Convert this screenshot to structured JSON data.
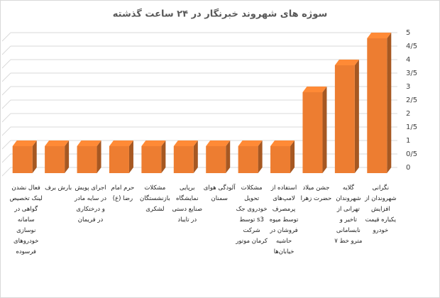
{
  "chart_data": {
    "type": "bar",
    "title": "سوژه های شهروند خبرنگار در ۲۴ ساعت گذشته",
    "categories": [
      "نگرانی شهروندان از افزایش یکباره قیمت خودرو",
      "گلایه شهروندان تهرانی از تاخیر و نابسامانی مترو خط ۷",
      "جشن میلاد حضرت زهرا",
      "استفاده از لامپ‌های پرمصرف توسط میوه فروشان در حاشیه خیابان‌ها",
      "مشکلات تحویل خودروی جک s3 توسط شرکت کرمان موتور",
      "آلودگی هوای سمنان",
      "برپایی نمایشگاه صنایع دستی در تایباد",
      "مشکلات بازنشستگان لشکری",
      "حرم امام رضا (ع)",
      "اجرای پویش در سایه مادر و درختکاری در فریمان",
      "بارش برف",
      "فعال نشدن لینک تخصیص گواهی در سامانه نوسازی خودروهای فرسوده"
    ],
    "values": [
      5,
      4,
      3,
      1,
      1,
      1,
      1,
      1,
      1,
      1,
      1,
      1
    ],
    "color": "#ed7d31",
    "ylim": [
      0,
      5
    ],
    "yticks": [
      0,
      {
        "value": 0.5,
        "label": "0/5"
      },
      1,
      {
        "value": 1.5,
        "label": "1/5"
      },
      2,
      {
        "value": 2.5,
        "label": "2/5"
      },
      3,
      {
        "value": 3.5,
        "label": "3/5"
      },
      4,
      {
        "value": 4.5,
        "label": "4/5"
      },
      5
    ],
    "grid": true
  }
}
